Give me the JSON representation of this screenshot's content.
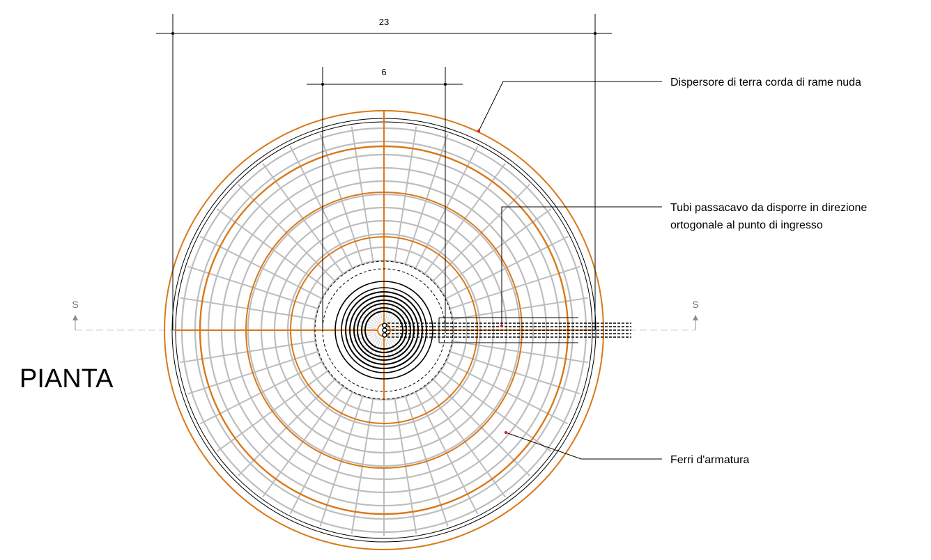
{
  "drawing": {
    "title": "PIANTA",
    "section_marker": "S",
    "dimensions": {
      "outer": "23",
      "inner": "6"
    },
    "callouts": {
      "ground_rod": "Dispersore di terra corda di rame nuda",
      "conduits_line1": "Tubi passacavo da disporre in direzione",
      "conduits_line2": "ortogonale al punto di ingresso",
      "rebar": "Ferri d'armatura"
    }
  },
  "colors": {
    "rebar_orange": "#d9781a",
    "mesh_grey": "#bdbdbd",
    "line_black": "#000000",
    "callout_dot_red": "#e02020",
    "section_grey": "#8c8c8c"
  }
}
